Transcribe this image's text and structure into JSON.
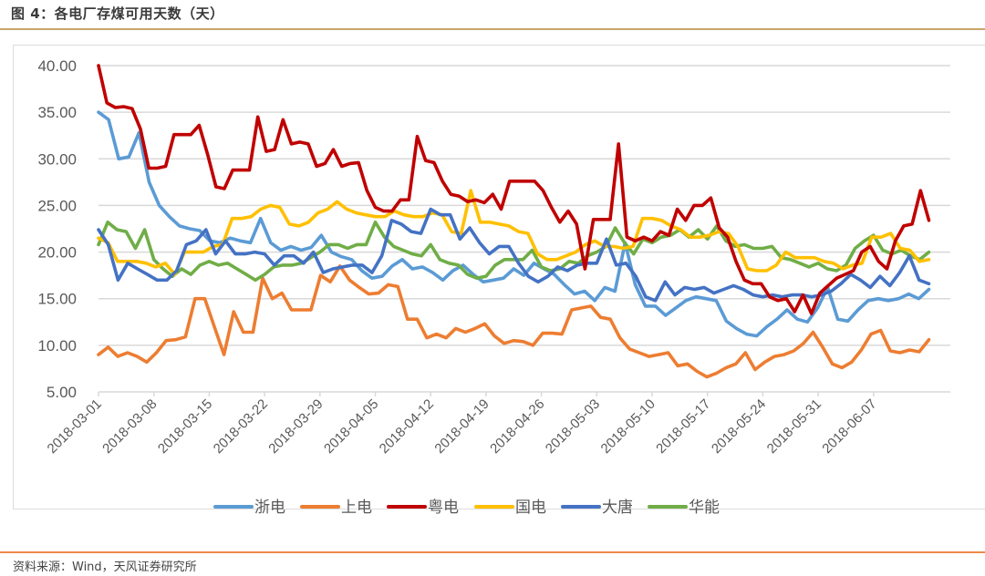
{
  "header": {
    "title": "图 4：各电厂存煤可用天数（天）"
  },
  "footer": {
    "source": "资料来源：Wind，天风证券研究所"
  },
  "chart_data": {
    "type": "line",
    "title": "图 4：各电厂存煤可用天数（天）",
    "xlabel": "",
    "ylabel": "",
    "ylim": [
      5,
      40
    ],
    "yticks": [
      "40.00",
      "35.00",
      "30.00",
      "25.00",
      "20.00",
      "15.00",
      "10.00",
      "5.00"
    ],
    "xticks": [
      "2018-03-01",
      "2018-03-08",
      "2018-03-15",
      "2018-03-22",
      "2018-03-29",
      "2018-04-05",
      "2018-04-12",
      "2018-04-19",
      "2018-04-26",
      "2018-05-03",
      "2018-05-10",
      "2018-05-17",
      "2018-05-24",
      "2018-05-31",
      "2018-06-07"
    ],
    "x_start": "2018-03-01",
    "x_days_step": 2,
    "grid": true,
    "legend_position": "bottom",
    "series": [
      {
        "name": "浙电",
        "color": "#5b9bd5",
        "values": [
          35.0,
          34.2,
          30.0,
          30.2,
          32.8,
          27.5,
          25.0,
          23.8,
          22.8,
          22.5,
          22.3,
          21.2,
          21.0,
          21.5,
          21.2,
          21.0,
          23.6,
          21.0,
          20.2,
          20.6,
          20.2,
          20.5,
          21.8,
          20.0,
          19.5,
          19.2,
          18.0,
          17.2,
          17.4,
          18.5,
          19.2,
          18.2,
          18.4,
          17.8,
          17.0,
          18.0,
          18.6,
          17.6,
          16.8,
          17.0,
          17.2,
          18.2,
          17.5,
          18.8,
          18.2,
          17.6,
          16.5,
          15.5,
          15.8,
          14.8,
          16.2,
          15.8,
          21.0,
          16.5,
          14.2,
          14.2,
          13.2,
          14.0,
          14.8,
          15.2,
          15.0,
          14.8,
          12.6,
          11.8,
          11.2,
          11.0,
          12.0,
          12.8,
          13.8,
          12.8,
          12.5,
          14.0,
          16.2,
          12.8,
          12.6,
          13.8,
          14.8,
          15.0,
          14.8,
          15.0,
          15.5,
          15.0,
          16.0
        ]
      },
      {
        "name": "上电",
        "color": "#ed7d31",
        "values": [
          9.0,
          9.8,
          8.8,
          9.2,
          8.8,
          8.2,
          9.2,
          10.5,
          10.6,
          10.9,
          15.0,
          15.0,
          12.0,
          9.0,
          13.6,
          11.4,
          11.4,
          17.2,
          15.0,
          15.6,
          13.8,
          13.8,
          13.8,
          17.5,
          16.8,
          18.5,
          17.0,
          16.2,
          15.5,
          15.6,
          16.5,
          16.3,
          12.8,
          12.8,
          10.8,
          11.2,
          10.8,
          11.8,
          11.4,
          11.8,
          12.3,
          11.0,
          10.2,
          10.5,
          10.4,
          10.0,
          11.3,
          11.3,
          11.2,
          13.8,
          14.0,
          14.2,
          13.0,
          12.8,
          10.8,
          9.6,
          9.2,
          8.8,
          9.0,
          9.2,
          7.8,
          8.0,
          7.2,
          6.6,
          7.0,
          7.6,
          8.0,
          9.2,
          7.4,
          8.2,
          8.8,
          9.0,
          9.4,
          10.2,
          11.4,
          9.8,
          8.0,
          7.6,
          8.2,
          9.5,
          11.2,
          11.6,
          9.4,
          9.2,
          9.5,
          9.3,
          10.6
        ]
      },
      {
        "name": "粤电",
        "color": "#c00000",
        "values": [
          40.0,
          36.0,
          35.5,
          35.6,
          35.4,
          33.2,
          29.0,
          29.0,
          29.2,
          32.6,
          32.6,
          32.6,
          33.6,
          30.5,
          27.0,
          26.8,
          28.8,
          28.8,
          28.8,
          34.5,
          30.8,
          31.0,
          34.2,
          31.6,
          31.8,
          31.6,
          29.2,
          29.5,
          31.0,
          29.2,
          29.5,
          29.6,
          26.6,
          24.8,
          24.4,
          24.4,
          25.6,
          25.6,
          32.4,
          29.8,
          29.6,
          27.6,
          26.2,
          26.0,
          25.4,
          25.6,
          25.3,
          26.2,
          24.6,
          27.6,
          27.6,
          27.6,
          27.6,
          26.6,
          24.8,
          23.2,
          24.4,
          23.0,
          18.2,
          23.5,
          23.5,
          23.5,
          31.6,
          21.6,
          21.2,
          21.6,
          21.2,
          22.2,
          21.8,
          24.6,
          23.4,
          25.0,
          25.0,
          25.8,
          22.6,
          21.6,
          19.0,
          17.0,
          16.6,
          16.6,
          15.2,
          14.8,
          15.0,
          13.6,
          15.4,
          13.4,
          15.6,
          16.4,
          17.2,
          17.6,
          18.0,
          20.0,
          20.6,
          19.0,
          18.2,
          21.2,
          22.8,
          23.0,
          26.6,
          23.4
        ]
      },
      {
        "name": "国电",
        "color": "#ffc000",
        "values": [
          21.5,
          21.0,
          19.0,
          19.0,
          19.0,
          18.8,
          18.4,
          18.8,
          17.6,
          20.0,
          20.0,
          20.0,
          20.6,
          20.8,
          23.6,
          23.6,
          23.8,
          24.6,
          25.0,
          24.8,
          23.0,
          22.8,
          23.2,
          24.2,
          24.6,
          25.4,
          24.6,
          24.2,
          24.0,
          23.8,
          23.8,
          24.4,
          24.0,
          23.8,
          23.8,
          24.2,
          24.0,
          22.2,
          22.0,
          26.6,
          23.2,
          23.2,
          23.0,
          22.8,
          22.2,
          22.0,
          19.8,
          19.2,
          19.2,
          19.6,
          20.0,
          20.8,
          21.2,
          20.6,
          20.6,
          20.4,
          20.6,
          23.6,
          23.6,
          23.4,
          22.8,
          22.4,
          21.6,
          21.6,
          21.8,
          22.2,
          22.0,
          20.6,
          18.2,
          18.0,
          18.0,
          18.6,
          20.0,
          19.4,
          19.4,
          19.4,
          19.0,
          18.8,
          18.2,
          18.6,
          18.8,
          21.6,
          21.6,
          22.0,
          20.4,
          20.2,
          19.0,
          19.2
        ]
      },
      {
        "name": "大唐",
        "color": "#4472c4",
        "values": [
          22.4,
          20.8,
          17.0,
          18.8,
          18.2,
          17.6,
          17.0,
          17.0,
          18.0,
          20.8,
          21.2,
          22.4,
          19.8,
          21.2,
          19.8,
          19.8,
          20.0,
          19.8,
          18.6,
          19.6,
          19.6,
          18.8,
          20.0,
          17.8,
          18.2,
          18.4,
          18.6,
          18.6,
          17.8,
          19.6,
          23.4,
          23.0,
          22.2,
          22.0,
          24.6,
          24.0,
          24.0,
          21.4,
          22.6,
          21.0,
          19.8,
          20.6,
          20.6,
          18.8,
          17.4,
          16.8,
          17.4,
          18.4,
          18.0,
          18.6,
          18.8,
          18.8,
          21.4,
          18.6,
          18.8,
          17.4,
          15.2,
          14.8,
          16.8,
          15.4,
          16.2,
          16.0,
          16.2,
          15.6,
          16.0,
          16.4,
          16.0,
          15.4,
          15.2,
          15.4,
          15.2,
          15.4,
          15.4,
          15.2,
          15.4,
          15.8,
          16.6,
          17.6,
          17.0,
          16.2,
          17.4,
          16.4,
          17.8,
          19.6,
          17.0,
          16.6
        ]
      },
      {
        "name": "华能",
        "color": "#70ad47",
        "values": [
          20.8,
          23.2,
          22.4,
          22.2,
          20.4,
          22.4,
          19.2,
          18.2,
          17.4,
          18.2,
          17.6,
          18.6,
          19.0,
          18.6,
          18.8,
          18.2,
          17.6,
          17.0,
          17.6,
          18.4,
          18.6,
          18.6,
          18.8,
          19.4,
          20.0,
          20.8,
          20.8,
          20.4,
          20.8,
          20.8,
          23.2,
          21.6,
          20.6,
          20.2,
          19.8,
          19.6,
          20.8,
          19.2,
          18.8,
          18.6,
          17.6,
          17.2,
          17.4,
          18.6,
          19.2,
          19.2,
          19.2,
          20.2,
          18.4,
          18.0,
          18.2,
          19.0,
          18.8,
          19.6,
          20.0,
          20.6,
          22.6,
          21.0,
          19.8,
          21.4,
          21.0,
          21.6,
          21.8,
          22.4,
          21.6,
          22.4,
          21.4,
          22.8,
          21.2,
          20.6,
          20.8,
          20.4,
          20.4,
          20.6,
          19.4,
          19.2,
          18.8,
          18.4,
          18.8,
          18.2,
          18.0,
          18.6,
          20.4,
          21.2,
          21.8,
          20.2,
          19.8,
          20.2,
          19.6,
          19.2,
          20.0
        ]
      }
    ]
  }
}
